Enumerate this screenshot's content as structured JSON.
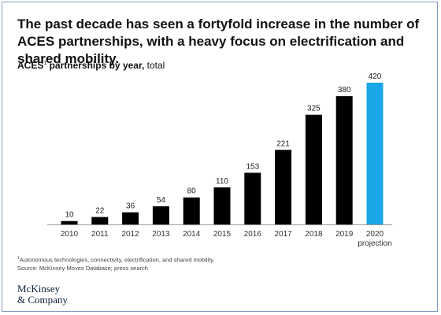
{
  "headline": "The past decade has seen a fortyfold increase in the number of ACES partnerships, with a heavy focus on electrification and shared mobility.",
  "subtitle": {
    "bold": "ACES",
    "sup": "1",
    "bold_rest": " partnerships by year,",
    "normal": " total"
  },
  "footnote": {
    "sup": "1",
    "text": "Autonomous technologies, connectivity, electrification, and shared mobility.",
    "source": "Source: McKinsey Moves Database; press search"
  },
  "logo": {
    "line1": "McKinsey",
    "line2": "& Company"
  },
  "colors": {
    "bar": "#000000",
    "projection": "#1aa7e8",
    "axis": "#999999",
    "frame": "#7f9cc0"
  },
  "chart_data": {
    "type": "bar",
    "categories": [
      "2010",
      "2011",
      "2012",
      "2013",
      "2014",
      "2015",
      "2016",
      "2017",
      "2018",
      "2019",
      "2020"
    ],
    "category_sublabels": [
      "",
      "",
      "",
      "",
      "",
      "",
      "",
      "",
      "",
      "",
      "projection"
    ],
    "values": [
      10,
      22,
      36,
      54,
      80,
      110,
      153,
      221,
      325,
      380,
      420
    ],
    "highlight_index": 10,
    "title": "ACES partnerships by year, total",
    "xlabel": "",
    "ylabel": "",
    "ylim": [
      0,
      420
    ],
    "grid": false,
    "legend": "none"
  }
}
